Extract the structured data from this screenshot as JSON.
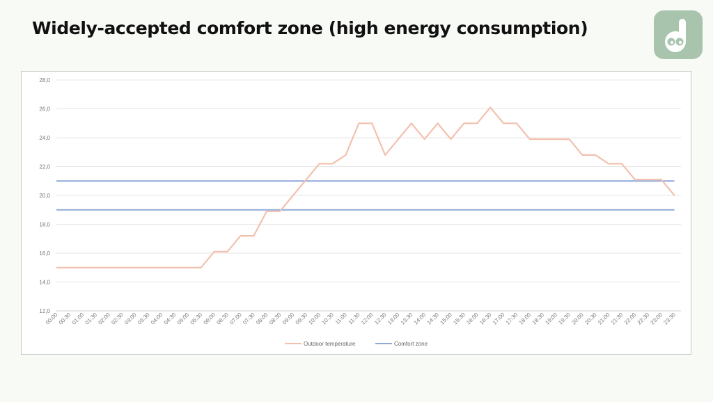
{
  "slide": {
    "title": "Widely-accepted comfort zone (high energy consumption)",
    "logo_icon": "dh-logo-icon"
  },
  "chart_data": {
    "type": "line",
    "x": [
      "00:00",
      "00:30",
      "01:00",
      "01:30",
      "02:00",
      "02:30",
      "03:00",
      "03:30",
      "04:00",
      "04:30",
      "05:00",
      "05:30",
      "06:00",
      "06:30",
      "07:00",
      "07:30",
      "08:00",
      "08:30",
      "09:00",
      "09:30",
      "10:00",
      "10:30",
      "11:00",
      "11:30",
      "12:00",
      "12:30",
      "13:00",
      "13:30",
      "14:00",
      "14:30",
      "15:00",
      "15:30",
      "16:00",
      "16:30",
      "17:00",
      "17:30",
      "18:00",
      "18:30",
      "19:00",
      "19:30",
      "20:00",
      "20:30",
      "21:00",
      "21:30",
      "22:00",
      "22:30",
      "23:00",
      "23:30"
    ],
    "series": [
      {
        "name": "Outdoor temperature",
        "color": "#f3c0ae",
        "values": [
          15,
          15,
          15,
          15,
          15,
          15,
          15,
          15,
          15,
          15,
          15,
          15,
          16.1,
          16.1,
          17.2,
          17.2,
          18.9,
          18.9,
          20,
          21.1,
          22.2,
          22.2,
          22.8,
          25,
          25,
          22.8,
          23.9,
          25,
          23.9,
          25,
          23.9,
          25,
          25,
          26.1,
          25,
          25,
          23.9,
          23.9,
          23.9,
          23.9,
          22.8,
          22.8,
          22.2,
          22.2,
          21.1,
          21.1,
          21.1,
          20
        ]
      },
      {
        "name": "Comfort zone",
        "color": "#8ea9d8",
        "band": [
          19,
          21
        ]
      }
    ],
    "yticks": [
      "12,0",
      "14,0",
      "16,0",
      "18,0",
      "20,0",
      "22,0",
      "24,0",
      "26,0",
      "28,0"
    ],
    "ylim": [
      12,
      28
    ],
    "grid": true,
    "legend": "bottom"
  }
}
